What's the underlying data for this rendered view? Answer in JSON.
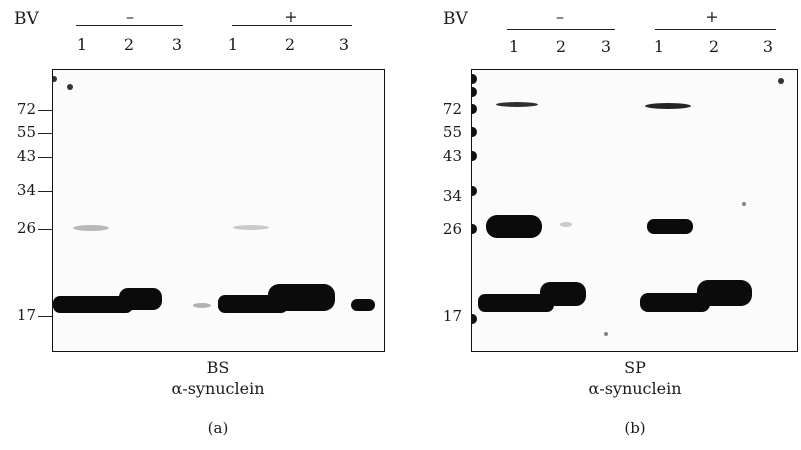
{
  "panels": [
    {
      "bv_label": "BV",
      "group_minus": "–",
      "group_plus": "+",
      "lanes": [
        "1",
        "2",
        "3",
        "1",
        "2",
        "3"
      ],
      "mw_markers": [
        "72",
        "55",
        "43",
        "34",
        "26",
        "17"
      ],
      "sample": "BS",
      "antibody": "α-synuclein",
      "panel_label": "(a)"
    },
    {
      "bv_label": "BV",
      "group_minus": "–",
      "group_plus": "+",
      "lanes": [
        "1",
        "2",
        "3",
        "1",
        "2",
        "3"
      ],
      "mw_markers": [
        "72",
        "55",
        "43",
        "34",
        "26",
        "17"
      ],
      "sample": "SP",
      "antibody": "α-synuclein",
      "panel_label": "(b)"
    }
  ]
}
